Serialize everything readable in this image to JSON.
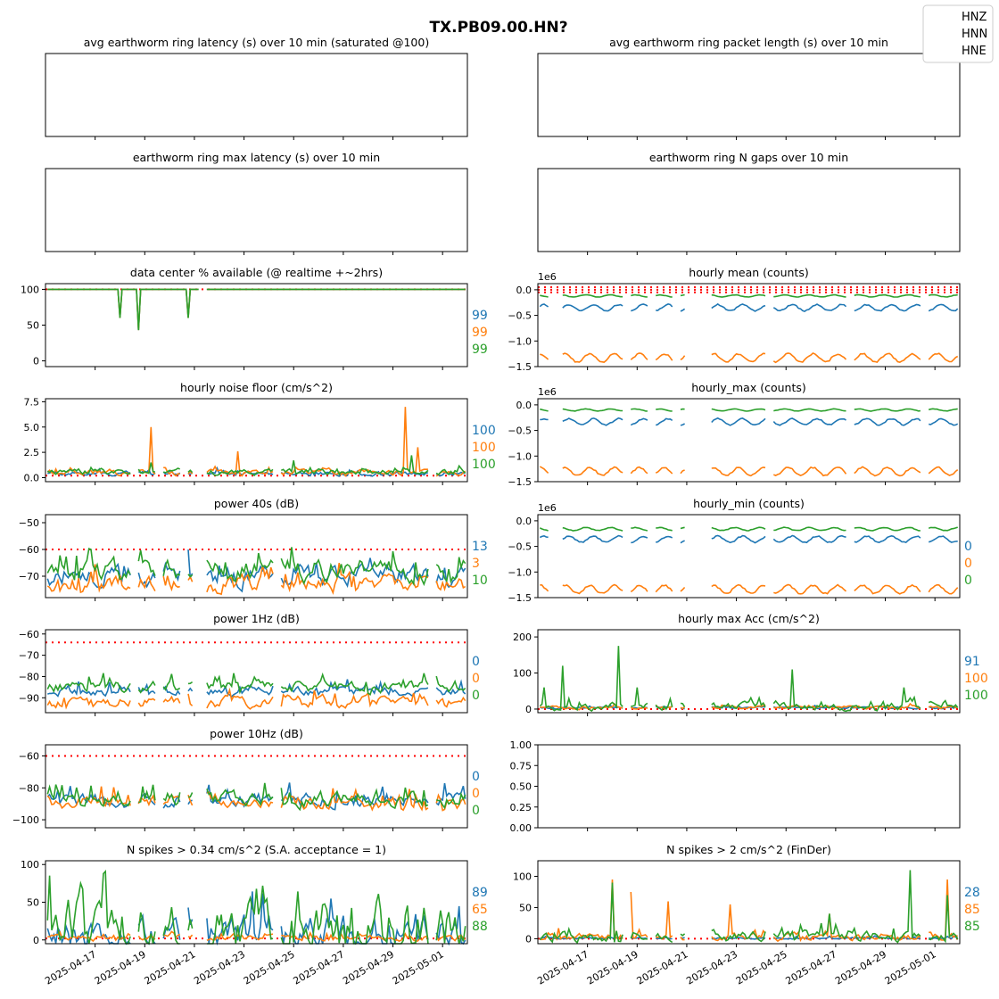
{
  "figure_title": "TX.PB09.00.HN?",
  "legend": [
    "HNZ",
    "HNN",
    "HNE"
  ],
  "colors": {
    "HNZ": "#1f77b4",
    "HNN": "#ff7f0e",
    "HNE": "#2ca02c",
    "threshold": "#ff0000"
  },
  "x_axis": {
    "type": "date",
    "range": [
      "2025-04-15",
      "2025-05-02"
    ],
    "ticks": [
      "2025-04-17",
      "2025-04-19",
      "2025-04-21",
      "2025-04-23",
      "2025-04-25",
      "2025-04-27",
      "2025-04-29",
      "2025-05-01"
    ]
  },
  "chart_data": [
    {
      "id": "latency_avg",
      "type": "line",
      "title": "avg earthworm ring latency (s)   over 10 min (saturated @100)",
      "series": []
    },
    {
      "id": "packet_len",
      "type": "line",
      "title": "avg earthworm ring packet length (s)   over 10 min",
      "series": []
    },
    {
      "id": "latency_max",
      "type": "line",
      "title": "earthworm ring max latency (s)   over 10 min",
      "series": []
    },
    {
      "id": "n_gaps",
      "type": "line",
      "title": "earthworm ring N gaps   over 10 min",
      "series": []
    },
    {
      "id": "availability",
      "type": "line",
      "title": "data center % available (@ realtime +~2hrs)",
      "ylim": [
        -8,
        108
      ],
      "yticks": [
        "0",
        "50",
        "100"
      ],
      "tick_values": [
        0,
        50,
        100
      ],
      "threshold": [
        100
      ],
      "percentages": [
        "99",
        "99",
        "99"
      ],
      "gaps": [
        [
          "2025-04-21 06:00",
          "2025-04-21 12:00"
        ]
      ],
      "series": [
        {
          "name": "HNZ",
          "base": 100,
          "dips": [
            [
              "2025-04-18 00:00",
              60
            ],
            [
              "2025-04-18 18:00",
              43
            ],
            [
              "2025-04-20 18:00",
              60
            ]
          ]
        },
        {
          "name": "HNN",
          "base": 100,
          "dips": [
            [
              "2025-04-18 00:00",
              60
            ],
            [
              "2025-04-18 18:00",
              43
            ],
            [
              "2025-04-20 18:00",
              60
            ]
          ]
        },
        {
          "name": "HNE",
          "base": 100,
          "dips": [
            [
              "2025-04-18 00:00",
              60
            ],
            [
              "2025-04-18 18:00",
              43
            ],
            [
              "2025-04-20 18:00",
              60
            ]
          ]
        }
      ]
    },
    {
      "id": "hourly_mean",
      "type": "line",
      "title": "hourly mean (counts)",
      "ylim": [
        -1.5,
        0.12
      ],
      "yticks": [
        "0.0",
        "−0.5",
        "−1.0",
        "−1.5"
      ],
      "tick_values": [
        0,
        -0.5,
        -1.0,
        -1.5
      ],
      "offset_label": "1e6",
      "threshold": [
        0.05,
        0.0,
        -0.05
      ],
      "gaps": [
        [
          "2025-04-15 12:00",
          "2025-04-16 00:00"
        ],
        [
          "2025-04-18 12:00",
          "2025-04-18 18:00"
        ],
        [
          "2025-04-19 12:00",
          "2025-04-19 18:00"
        ],
        [
          "2025-04-20 12:00",
          "2025-04-20 18:00"
        ],
        [
          "2025-04-21 00:00",
          "2025-04-22 00:00"
        ],
        [
          "2025-04-24 06:00",
          "2025-04-24 12:00"
        ],
        [
          "2025-04-27 12:00",
          "2025-04-27 18:00"
        ],
        [
          "2025-04-30 12:00",
          "2025-04-30 18:00"
        ]
      ],
      "series": [
        {
          "name": "HNZ",
          "center": -0.35,
          "amp": 0.06
        },
        {
          "name": "HNN",
          "center": -1.33,
          "amp": 0.08
        },
        {
          "name": "HNE",
          "center": -0.12,
          "amp": 0.02
        }
      ]
    },
    {
      "id": "noise_floor",
      "type": "line",
      "title": "hourly noise floor (cm/s^2)",
      "ylim": [
        -0.4,
        7.8
      ],
      "yticks": [
        "0.0",
        "2.5",
        "5.0",
        "7.5"
      ],
      "tick_values": [
        0,
        2.5,
        5.0,
        7.5
      ],
      "threshold": [
        0.2
      ],
      "percentages": [
        "100",
        "100",
        "100"
      ],
      "gaps": [
        [
          "2025-04-18 12:00",
          "2025-04-18 18:00"
        ],
        [
          "2025-04-19 12:00",
          "2025-04-19 18:00"
        ],
        [
          "2025-04-20 12:00",
          "2025-04-20 18:00"
        ],
        [
          "2025-04-21 00:00",
          "2025-04-21 12:00"
        ],
        [
          "2025-04-24 06:00",
          "2025-04-24 12:00"
        ],
        [
          "2025-04-30 12:00",
          "2025-04-30 18:00"
        ]
      ],
      "series": [
        {
          "name": "HNZ",
          "base": 0.4,
          "spread": 0.4,
          "spikes": []
        },
        {
          "name": "HNN",
          "base": 0.5,
          "spread": 0.6,
          "spikes": [
            [
              "2025-04-19 06:00",
              5.0
            ],
            [
              "2025-04-22 18:00",
              2.6
            ],
            [
              "2025-04-29 12:00",
              7.0
            ],
            [
              "2025-04-30 00:00",
              3.0
            ]
          ]
        },
        {
          "name": "HNE",
          "base": 0.6,
          "spread": 0.6,
          "spikes": [
            [
              "2025-04-19 06:00",
              1.5
            ],
            [
              "2025-04-25 00:00",
              1.7
            ],
            [
              "2025-04-29 18:00",
              2.2
            ]
          ]
        }
      ]
    },
    {
      "id": "hourly_max",
      "type": "line",
      "title": "hourly_max (counts)",
      "ylim": [
        -1.5,
        0.12
      ],
      "yticks": [
        "0.0",
        "−0.5",
        "−1.0",
        "−1.5"
      ],
      "tick_values": [
        0,
        -0.5,
        -1.0,
        -1.5
      ],
      "offset_label": "1e6",
      "gaps": [
        [
          "2025-04-15 12:00",
          "2025-04-16 00:00"
        ],
        [
          "2025-04-18 12:00",
          "2025-04-18 18:00"
        ],
        [
          "2025-04-19 12:00",
          "2025-04-19 18:00"
        ],
        [
          "2025-04-20 12:00",
          "2025-04-20 18:00"
        ],
        [
          "2025-04-21 00:00",
          "2025-04-22 00:00"
        ],
        [
          "2025-04-24 06:00",
          "2025-04-24 12:00"
        ],
        [
          "2025-04-27 12:00",
          "2025-04-27 18:00"
        ],
        [
          "2025-04-30 12:00",
          "2025-04-30 18:00"
        ]
      ],
      "series": [
        {
          "name": "HNZ",
          "center": -0.33,
          "amp": 0.06
        },
        {
          "name": "HNN",
          "center": -1.3,
          "amp": 0.08
        },
        {
          "name": "HNE",
          "center": -0.1,
          "amp": 0.02
        }
      ]
    },
    {
      "id": "power_40s",
      "type": "line",
      "title": "power 40s (dB)",
      "ylim": [
        -78,
        -47
      ],
      "yticks": [
        "−50",
        "−60",
        "−70"
      ],
      "tick_values": [
        -50,
        -60,
        -70
      ],
      "threshold": [
        -60
      ],
      "percentages": [
        "13",
        "3",
        "10"
      ],
      "gaps": [
        [
          "2025-04-18 12:00",
          "2025-04-18 18:00"
        ],
        [
          "2025-04-19 12:00",
          "2025-04-19 18:00"
        ],
        [
          "2025-04-20 12:00",
          "2025-04-20 18:00"
        ],
        [
          "2025-04-21 00:00",
          "2025-04-21 12:00"
        ],
        [
          "2025-04-24 06:00",
          "2025-04-24 12:00"
        ],
        [
          "2025-04-30 12:00",
          "2025-04-30 18:00"
        ]
      ],
      "series": [
        {
          "name": "HNZ",
          "base": -70,
          "spread": 7
        },
        {
          "name": "HNN",
          "base": -73,
          "spread": 6
        },
        {
          "name": "HNE",
          "base": -68,
          "spread": 8
        }
      ]
    },
    {
      "id": "hourly_min",
      "type": "line",
      "title": "hourly_min (counts)",
      "ylim": [
        -1.5,
        0.12
      ],
      "yticks": [
        "0.0",
        "−0.5",
        "−1.0",
        "−1.5"
      ],
      "tick_values": [
        0,
        -0.5,
        -1.0,
        -1.5
      ],
      "offset_label": "1e6",
      "percentages": [
        "0",
        "0",
        "0"
      ],
      "gaps": [
        [
          "2025-04-15 12:00",
          "2025-04-16 00:00"
        ],
        [
          "2025-04-18 12:00",
          "2025-04-18 18:00"
        ],
        [
          "2025-04-19 12:00",
          "2025-04-19 18:00"
        ],
        [
          "2025-04-20 12:00",
          "2025-04-20 18:00"
        ],
        [
          "2025-04-21 00:00",
          "2025-04-22 00:00"
        ],
        [
          "2025-04-24 06:00",
          "2025-04-24 12:00"
        ],
        [
          "2025-04-27 12:00",
          "2025-04-27 18:00"
        ],
        [
          "2025-04-30 12:00",
          "2025-04-30 18:00"
        ]
      ],
      "series": [
        {
          "name": "HNZ",
          "center": -0.36,
          "amp": 0.06
        },
        {
          "name": "HNN",
          "center": -1.34,
          "amp": 0.08
        },
        {
          "name": "HNE",
          "center": -0.16,
          "amp": 0.03
        }
      ]
    },
    {
      "id": "power_1hz",
      "type": "line",
      "title": "power 1Hz (dB)",
      "ylim": [
        -97,
        -58
      ],
      "yticks": [
        "−60",
        "−70",
        "−80",
        "−90"
      ],
      "tick_values": [
        -60,
        -70,
        -80,
        -90
      ],
      "threshold": [
        -64
      ],
      "percentages": [
        "0",
        "0",
        "0"
      ],
      "gaps": [
        [
          "2025-04-18 12:00",
          "2025-04-18 18:00"
        ],
        [
          "2025-04-19 12:00",
          "2025-04-19 18:00"
        ],
        [
          "2025-04-20 12:00",
          "2025-04-20 18:00"
        ],
        [
          "2025-04-21 00:00",
          "2025-04-21 12:00"
        ],
        [
          "2025-04-24 06:00",
          "2025-04-24 12:00"
        ],
        [
          "2025-04-30 12:00",
          "2025-04-30 18:00"
        ]
      ],
      "series": [
        {
          "name": "HNZ",
          "base": -87,
          "spread": 4
        },
        {
          "name": "HNN",
          "base": -92,
          "spread": 5
        },
        {
          "name": "HNE",
          "base": -85,
          "spread": 5
        }
      ]
    },
    {
      "id": "max_acc",
      "type": "line",
      "title": "hourly max Acc (cm/s^2)",
      "ylim": [
        -10,
        220
      ],
      "yticks": [
        "0",
        "100",
        "200"
      ],
      "tick_values": [
        0,
        100,
        200
      ],
      "threshold": [
        0
      ],
      "percentages": [
        "91",
        "100",
        "100"
      ],
      "gaps": [
        [
          "2025-04-18 12:00",
          "2025-04-18 18:00"
        ],
        [
          "2025-04-19 12:00",
          "2025-04-19 18:00"
        ],
        [
          "2025-04-20 12:00",
          "2025-04-20 18:00"
        ],
        [
          "2025-04-21 00:00",
          "2025-04-22 00:00"
        ],
        [
          "2025-04-24 06:00",
          "2025-04-24 12:00"
        ],
        [
          "2025-04-30 12:00",
          "2025-04-30 18:00"
        ]
      ],
      "series": [
        {
          "name": "HNZ",
          "base": 4,
          "spread": 6,
          "spikes": []
        },
        {
          "name": "HNN",
          "base": 5,
          "spread": 8,
          "spikes": []
        },
        {
          "name": "HNE",
          "base": 8,
          "spread": 20,
          "spikes": [
            [
              "2025-04-15 06:00",
              60
            ],
            [
              "2025-04-16 00:00",
              120
            ],
            [
              "2025-04-18 06:00",
              175
            ],
            [
              "2025-04-19 00:00",
              60
            ],
            [
              "2025-04-20 12:00",
              60
            ],
            [
              "2025-04-21 00:00",
              170
            ],
            [
              "2025-04-25 06:00",
              110
            ],
            [
              "2025-04-29 18:00",
              60
            ],
            [
              "2025-05-02 00:00",
              60
            ]
          ]
        }
      ]
    },
    {
      "id": "power_10hz",
      "type": "line",
      "title": "power 10Hz (dB)",
      "ylim": [
        -105,
        -53
      ],
      "yticks": [
        "−60",
        "−80",
        "−100"
      ],
      "tick_values": [
        -60,
        -80,
        -100
      ],
      "threshold": [
        -60
      ],
      "percentages": [
        "0",
        "0",
        "0"
      ],
      "gaps": [
        [
          "2025-04-18 12:00",
          "2025-04-18 18:00"
        ],
        [
          "2025-04-19 12:00",
          "2025-04-19 18:00"
        ],
        [
          "2025-04-20 12:00",
          "2025-04-20 18:00"
        ],
        [
          "2025-04-21 00:00",
          "2025-04-21 12:00"
        ],
        [
          "2025-04-24 06:00",
          "2025-04-24 12:00"
        ],
        [
          "2025-04-30 12:00",
          "2025-04-30 18:00"
        ]
      ],
      "series": [
        {
          "name": "HNZ",
          "base": -88,
          "spread": 8
        },
        {
          "name": "HNN",
          "base": -89,
          "spread": 8
        },
        {
          "name": "HNE",
          "base": -87,
          "spread": 9
        }
      ]
    },
    {
      "id": "empty_panel",
      "type": "line",
      "title": "",
      "ylim": [
        0,
        1
      ],
      "yticks": [
        "0.00",
        "0.25",
        "0.50",
        "0.75",
        "1.00"
      ],
      "tick_values": [
        0,
        0.25,
        0.5,
        0.75,
        1.0
      ],
      "series": []
    },
    {
      "id": "spikes_sa",
      "type": "line",
      "title": "N spikes > 0.34 cm/s^2 (S.A. acceptance = 1)",
      "ylim": [
        -5,
        105
      ],
      "yticks": [
        "0",
        "50",
        "100"
      ],
      "tick_values": [
        0,
        50,
        100
      ],
      "threshold": [
        2
      ],
      "percentages": [
        "89",
        "65",
        "88"
      ],
      "gaps": [
        [
          "2025-04-18 12:00",
          "2025-04-18 18:00"
        ],
        [
          "2025-04-19 12:00",
          "2025-04-19 18:00"
        ],
        [
          "2025-04-20 12:00",
          "2025-04-20 18:00"
        ],
        [
          "2025-04-21 00:00",
          "2025-04-21 12:00"
        ],
        [
          "2025-04-24 06:00",
          "2025-04-24 12:00"
        ],
        [
          "2025-04-30 12:00",
          "2025-04-30 18:00"
        ]
      ],
      "series": [
        {
          "name": "HNZ",
          "base": 10,
          "spread": 40
        },
        {
          "name": "HNN",
          "base": 3,
          "spread": 8
        },
        {
          "name": "HNE",
          "base": 15,
          "spread": 70
        }
      ]
    },
    {
      "id": "spikes_finder",
      "type": "line",
      "title": "N spikes > 2 cm/s^2 (FinDer)",
      "ylim": [
        -8,
        125
      ],
      "yticks": [
        "0",
        "50",
        "100"
      ],
      "tick_values": [
        0,
        50,
        100
      ],
      "threshold": [
        0
      ],
      "percentages": [
        "28",
        "85",
        "85"
      ],
      "gaps": [
        [
          "2025-04-18 12:00",
          "2025-04-18 18:00"
        ],
        [
          "2025-04-19 12:00",
          "2025-04-19 18:00"
        ],
        [
          "2025-04-20 12:00",
          "2025-04-20 18:00"
        ],
        [
          "2025-04-21 00:00",
          "2025-04-22 00:00"
        ],
        [
          "2025-04-24 06:00",
          "2025-04-24 12:00"
        ],
        [
          "2025-04-30 12:00",
          "2025-04-30 18:00"
        ]
      ],
      "series": [
        {
          "name": "HNZ",
          "base": 1,
          "spread": 3,
          "spikes": []
        },
        {
          "name": "HNN",
          "base": 3,
          "spread": 12,
          "spikes": [
            [
              "2025-04-18 00:00",
              95
            ],
            [
              "2025-04-18 18:00",
              75
            ],
            [
              "2025-04-19 12:00",
              85
            ],
            [
              "2025-04-20 06:00",
              60
            ],
            [
              "2025-04-22 18:00",
              55
            ],
            [
              "2025-04-26 18:00",
              40
            ],
            [
              "2025-05-01 12:00",
              95
            ]
          ]
        },
        {
          "name": "HNE",
          "base": 3,
          "spread": 15,
          "spikes": [
            [
              "2025-04-18 00:00",
              90
            ],
            [
              "2025-04-19 12:00",
              70
            ],
            [
              "2025-04-24 06:00",
              45
            ],
            [
              "2025-04-26 18:00",
              40
            ],
            [
              "2025-04-30 00:00",
              110
            ],
            [
              "2025-05-01 12:00",
              70
            ]
          ]
        }
      ]
    }
  ]
}
